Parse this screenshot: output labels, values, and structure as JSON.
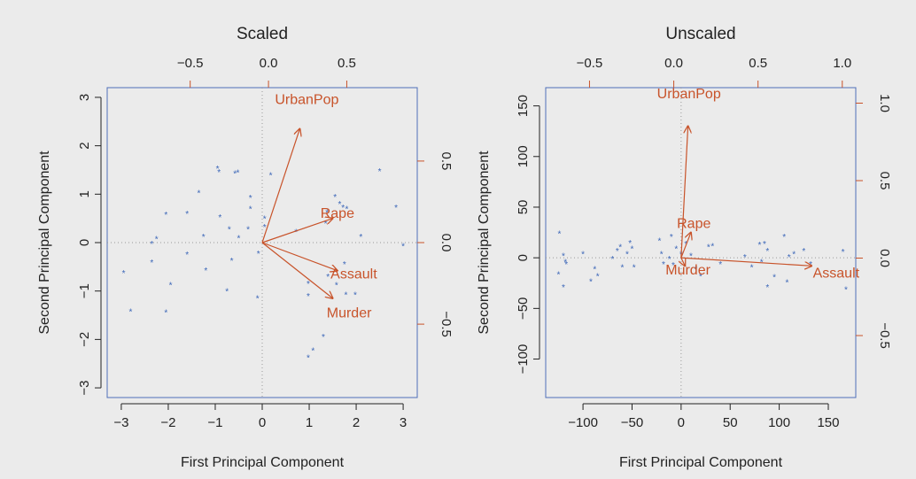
{
  "colors": {
    "background": "#ebebeb",
    "frame": "#4f6fb8",
    "points": "#3b66b8",
    "vectors": "#c8532a",
    "reference_lines": "#999999",
    "text": "#222222"
  },
  "point_marker": "*",
  "chart_data": [
    {
      "type": "scatter",
      "subtype": "biplot",
      "title": "Scaled",
      "xlabel": "First Principal Component",
      "ylabel": "Second Principal Component",
      "xlim": [
        -3.3,
        3.3
      ],
      "ylim": [
        -3.2,
        3.2
      ],
      "x_ticks": [
        -3,
        -2,
        -1,
        0,
        1,
        2,
        3
      ],
      "y_ticks": [
        -3,
        -2,
        -1,
        0,
        1,
        2,
        3
      ],
      "top_axis": {
        "lim": [
          -1.03,
          0.95
        ],
        "ticks": [
          -0.5,
          0.0,
          0.5
        ],
        "labels": [
          "−0.5",
          "0.0",
          "0.5"
        ]
      },
      "right_axis": {
        "lim": [
          -0.95,
          0.95
        ],
        "ticks": [
          -0.5,
          0.0,
          0.5
        ],
        "labels": [
          "−0.5",
          "0.0",
          "0.5"
        ]
      },
      "reference_lines": "dotted at 0",
      "points": [
        [
          -2.95,
          -0.6
        ],
        [
          -2.8,
          -1.4
        ],
        [
          -2.35,
          0.0
        ],
        [
          -2.25,
          0.1
        ],
        [
          -2.35,
          -0.38
        ],
        [
          -2.05,
          0.6
        ],
        [
          -1.95,
          -0.85
        ],
        [
          -2.05,
          -1.42
        ],
        [
          -1.6,
          0.62
        ],
        [
          -1.6,
          -0.22
        ],
        [
          -1.35,
          1.05
        ],
        [
          -1.25,
          0.15
        ],
        [
          -1.2,
          -0.55
        ],
        [
          -0.95,
          1.55
        ],
        [
          -0.92,
          1.48
        ],
        [
          -0.9,
          0.55
        ],
        [
          -0.75,
          -0.98
        ],
        [
          -0.7,
          0.3
        ],
        [
          -0.65,
          -0.35
        ],
        [
          -0.58,
          1.45
        ],
        [
          -0.52,
          1.47
        ],
        [
          -0.5,
          0.12
        ],
        [
          -0.3,
          0.3
        ],
        [
          -0.25,
          0.95
        ],
        [
          -0.25,
          0.72
        ],
        [
          -0.1,
          -1.12
        ],
        [
          -0.08,
          -0.2
        ],
        [
          0.05,
          0.52
        ],
        [
          0.05,
          0.35
        ],
        [
          0.18,
          1.42
        ],
        [
          0.72,
          0.25
        ],
        [
          0.98,
          -0.82
        ],
        [
          0.98,
          -1.08
        ],
        [
          0.98,
          -2.35
        ],
        [
          1.08,
          -2.2
        ],
        [
          1.3,
          -1.92
        ],
        [
          1.35,
          0.42
        ],
        [
          1.38,
          0.65
        ],
        [
          1.4,
          -0.68
        ],
        [
          1.55,
          0.97
        ],
        [
          1.58,
          -0.85
        ],
        [
          1.65,
          0.82
        ],
        [
          1.72,
          0.75
        ],
        [
          1.75,
          -0.42
        ],
        [
          1.78,
          -1.05
        ],
        [
          1.8,
          0.72
        ],
        [
          1.98,
          -1.05
        ],
        [
          2.1,
          0.15
        ],
        [
          2.5,
          1.5
        ],
        [
          2.85,
          0.75
        ],
        [
          3.0,
          -0.05
        ]
      ],
      "vectors": [
        {
          "name": "UrbanPop",
          "x": 0.8,
          "y": 2.35,
          "label_x": 0.95,
          "label_y": 2.95
        },
        {
          "name": "Rape",
          "x": 1.5,
          "y": 0.5,
          "label_x": 1.6,
          "label_y": 0.6
        },
        {
          "name": "Assault",
          "x": 1.6,
          "y": -0.58,
          "label_x": 1.95,
          "label_y": -0.65
        },
        {
          "name": "Murder",
          "x": 1.5,
          "y": -1.15,
          "label_x": 1.85,
          "label_y": -1.45
        }
      ]
    },
    {
      "type": "scatter",
      "subtype": "biplot",
      "title": "Unscaled",
      "xlabel": "First Principal Component",
      "ylabel": "Second Principal Component",
      "xlim": [
        -138,
        178
      ],
      "ylim": [
        -138,
        168
      ],
      "x_ticks": [
        -100,
        -50,
        0,
        50,
        100,
        150
      ],
      "y_ticks": [
        -100,
        -50,
        0,
        50,
        100,
        150
      ],
      "top_axis": {
        "lim": [
          -0.76,
          1.08
        ],
        "ticks": [
          -0.5,
          0.0,
          0.5,
          1.0
        ],
        "labels": [
          "−0.5",
          "0.0",
          "0.5",
          "1.0"
        ]
      },
      "right_axis": {
        "lim": [
          -0.9,
          1.1
        ],
        "ticks": [
          -0.5,
          0.0,
          0.5,
          1.0
        ],
        "labels": [
          "−0.5",
          "0.0",
          "0.5",
          "1.0"
        ]
      },
      "reference_lines": "dotted at 0",
      "points": [
        [
          -124,
          25
        ],
        [
          -125,
          -15
        ],
        [
          -120,
          3
        ],
        [
          -118,
          -3
        ],
        [
          -117,
          -5
        ],
        [
          -120,
          -28
        ],
        [
          -100,
          5
        ],
        [
          -92,
          -22
        ],
        [
          -88,
          -10
        ],
        [
          -85,
          -17
        ],
        [
          -70,
          0
        ],
        [
          -65,
          8
        ],
        [
          -62,
          12
        ],
        [
          -60,
          -8
        ],
        [
          -55,
          5
        ],
        [
          -52,
          16
        ],
        [
          -50,
          10
        ],
        [
          -48,
          -8
        ],
        [
          -22,
          18
        ],
        [
          -20,
          5
        ],
        [
          -18,
          -5
        ],
        [
          -10,
          22
        ],
        [
          -12,
          0
        ],
        [
          -5,
          10
        ],
        [
          -8,
          -6
        ],
        [
          0,
          5
        ],
        [
          5,
          15
        ],
        [
          10,
          3
        ],
        [
          15,
          -10
        ],
        [
          20,
          -17
        ],
        [
          28,
          12
        ],
        [
          32,
          13
        ],
        [
          40,
          -5
        ],
        [
          65,
          2
        ],
        [
          72,
          -8
        ],
        [
          80,
          14
        ],
        [
          82,
          -3
        ],
        [
          85,
          15
        ],
        [
          88,
          8
        ],
        [
          88,
          -28
        ],
        [
          95,
          -18
        ],
        [
          105,
          22
        ],
        [
          108,
          -23
        ],
        [
          110,
          2
        ],
        [
          115,
          5
        ],
        [
          125,
          8
        ],
        [
          132,
          -5
        ],
        [
          165,
          7
        ],
        [
          168,
          -30
        ]
      ],
      "vectors": [
        {
          "name": "UrbanPop",
          "x": 7,
          "y": 130,
          "label_x": 8,
          "label_y": 162
        },
        {
          "name": "Rape",
          "x": 10,
          "y": 25,
          "label_x": 13,
          "label_y": 34
        },
        {
          "name": "Murder",
          "x": 4,
          "y": -8,
          "label_x": 7,
          "label_y": -12
        },
        {
          "name": "Assault",
          "x": 133,
          "y": -8,
          "label_x": 158,
          "label_y": -15
        }
      ]
    }
  ]
}
